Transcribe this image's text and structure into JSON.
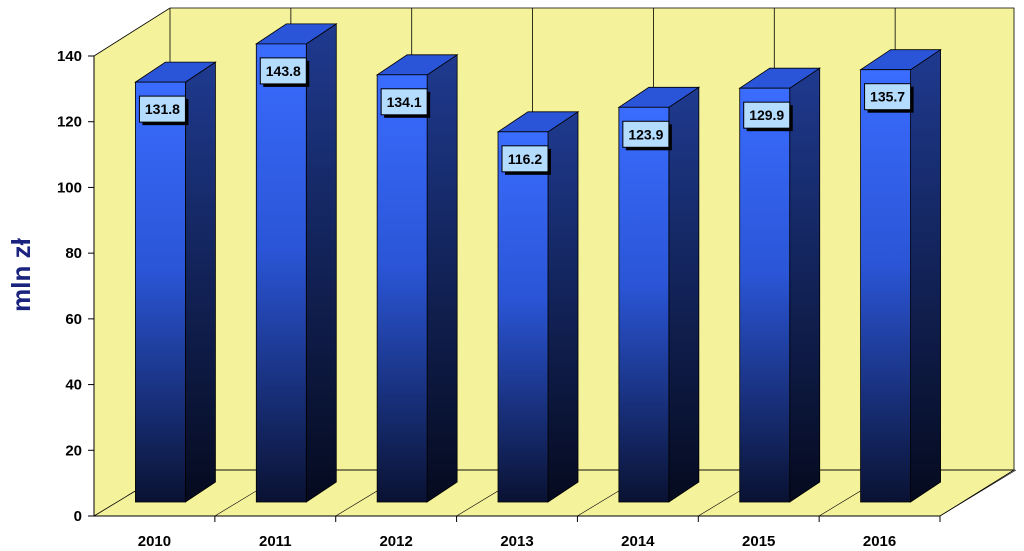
{
  "chart_data": {
    "type": "bar",
    "categories": [
      "2010",
      "2011",
      "2012",
      "2013",
      "2014",
      "2015",
      "2016"
    ],
    "values": [
      131.8,
      143.8,
      134.1,
      116.2,
      123.9,
      129.9,
      135.7
    ],
    "data_labels": [
      "131.8",
      "143.8",
      "134.1",
      "116.2",
      "123.9",
      "129.9",
      "135.7"
    ],
    "title": "",
    "xlabel": "",
    "ylabel": "mln zł",
    "ylim": [
      0,
      140
    ],
    "yticks": [
      "0",
      "20",
      "40",
      "60",
      "80",
      "100",
      "120",
      "140"
    ],
    "grid": "vertical",
    "legend": "none",
    "style": "3d-column",
    "colors": {
      "wall": "#f5f29c",
      "floor": "#f5f29c",
      "bar_front_top": "#3a6cff",
      "bar_front_bottom": "#0a1232",
      "bar_side_top": "#1f3a8f",
      "bar_side_bottom": "#050a1e",
      "bar_top": "#2b55d8",
      "label_box": "#b3dcff",
      "ylabel_color": "#1a237e"
    }
  }
}
